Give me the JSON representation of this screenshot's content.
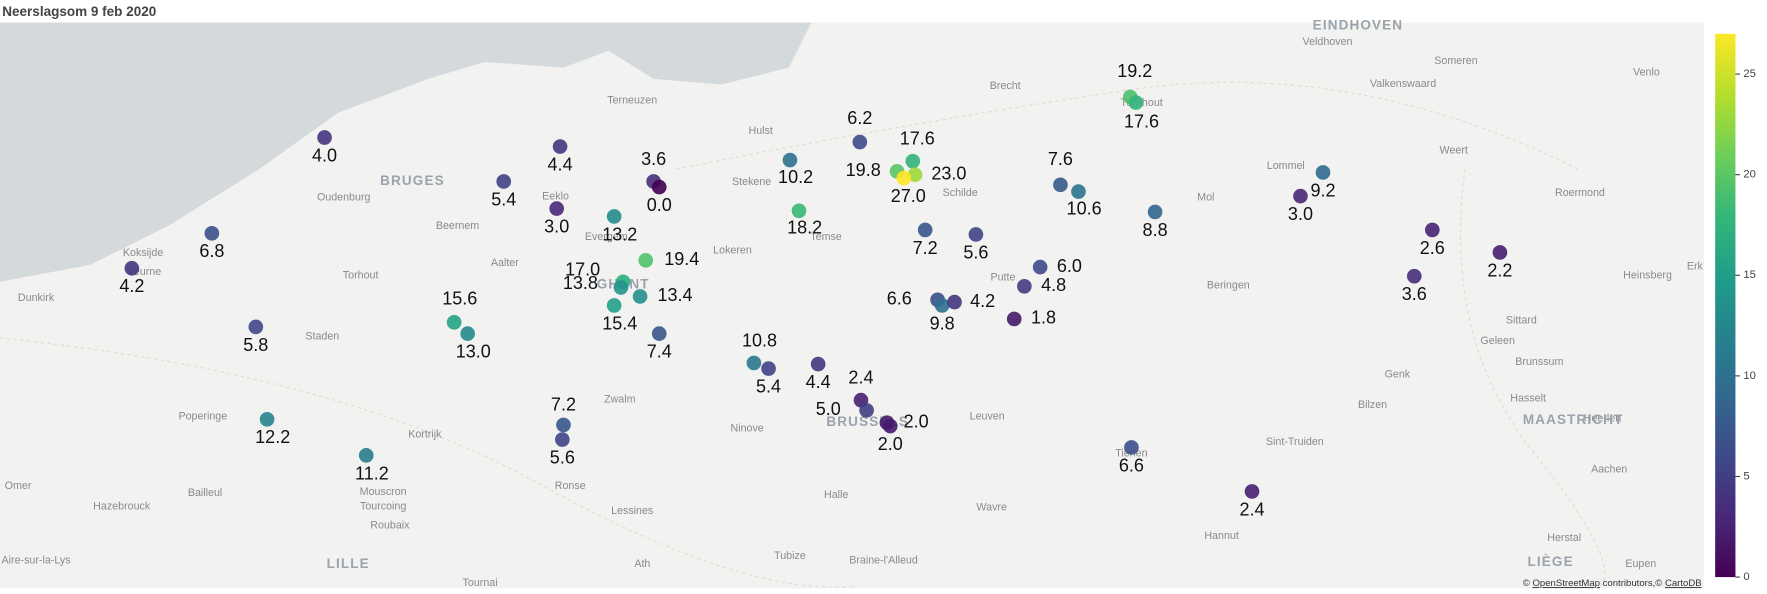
{
  "chart_data": {
    "type": "scatter",
    "title": "Neerslagsom 9 feb 2020",
    "values": [
      4,
      4.4,
      5.4,
      3,
      3.6,
      0,
      6.8,
      4.2,
      13.2,
      19.4,
      17,
      13.8,
      13.4,
      15.4,
      15.6,
      13,
      7.4,
      5.8,
      12.2,
      11.2,
      7.2,
      5.6,
      10.8,
      5.4,
      4.4,
      10.2,
      6.2,
      18.2,
      17.6,
      19.8,
      23,
      27,
      7.2,
      5.6,
      6.6,
      9.8,
      4.2,
      1.8,
      6,
      4.8,
      7.6,
      10.6,
      8.8,
      19.2,
      17.6,
      9.2,
      3,
      2.6,
      2.2,
      3.6,
      2.4,
      5,
      2,
      2,
      6.6,
      2.4
    ],
    "value_labels": [
      "4.0",
      "4.4",
      "5.4",
      "3.0",
      "3.6",
      "0.0",
      "6.8",
      "4.2",
      "13.2",
      "19.4",
      "17.0",
      "13.8",
      "13.4",
      "15.4",
      "15.6",
      "13.0",
      "7.4",
      "5.8",
      "12.2",
      "11.2",
      "7.2",
      "5.6",
      "10.8",
      "5.4",
      "4.4",
      "10.2",
      "6.2",
      "18.2",
      "17.6",
      "19.8",
      "23.0",
      "27.0",
      "7.2",
      "5.6",
      "6.6",
      "9.8",
      "4.2",
      "1.8",
      "6.0",
      "4.8",
      "7.6",
      "10.6",
      "8.8",
      "19.2",
      "17.6",
      "9.2",
      "3.0",
      "2.6",
      "2.2",
      "3.6",
      "2.4",
      "5.0",
      "2.0",
      "2.0",
      "6.6",
      "2.4"
    ],
    "colorscale": [
      "#440154",
      "#482878",
      "#3e4989",
      "#31688e",
      "#26828e",
      "#1f9e89",
      "#35b779",
      "#6ece58",
      "#b5de2b",
      "#fde725"
    ],
    "clim": [
      0,
      27
    ],
    "cticks": [
      0,
      5,
      10,
      15,
      20,
      25
    ],
    "places": [
      "EINDHOVEN",
      "Veldhoven",
      "Someren",
      "Venlo",
      "Valkenswaard",
      "Brecht",
      "Terneuzen",
      "Hulst",
      "Turnhout",
      "Weert",
      "Roermond",
      "BRUGES",
      "Oudenburg",
      "Eeklo",
      "Stekene",
      "Schilde",
      "Lommel",
      "Mol",
      "Beernem",
      "Evergem",
      "Lokeren",
      "Temse",
      "Koksijde",
      "Veurne",
      "Torhout",
      "Aalter",
      "GHENT",
      "Putte",
      "Beringen",
      "Dunkirk",
      "Heinsberg",
      "Erk",
      "Sittard",
      "Geleen",
      "Staden",
      "Genk",
      "Brunssum",
      "Hasselt",
      "Zwalm",
      "Ninove",
      "Leuven",
      "Bilzen",
      "Heerlen",
      "Poperinge",
      "Kortrijk",
      "BRUSSELS",
      "MAASTRICHT",
      "Sint-Truiden",
      "Tienen",
      "Aachen",
      "Omer",
      "Mouscron",
      "Ronse",
      "Halle",
      "Wavre",
      "Bailleul",
      "Hazebrouck",
      "Tourcoing",
      "Roubaix",
      "Lessines",
      "Tubize",
      "Braine-l'Alleud",
      "Hannut",
      "Herstal",
      "LIÈGE",
      "Aire-sur-la-Lys",
      "LILLE",
      "Ath",
      "Tournai",
      "Eupen"
    ],
    "attribution": [
      "© ",
      "OpenStreetMap",
      " contributors,© ",
      "CartoDB"
    ]
  }
}
